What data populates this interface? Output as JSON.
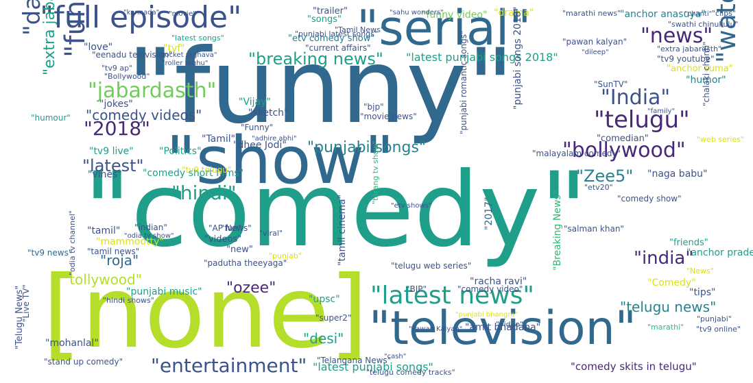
{
  "palette": {
    "background": "#ffffff",
    "dark_purple": "#482878",
    "deep_blue": "#3b528b",
    "blue": "#31688e",
    "teal_blue": "#26828e",
    "teal": "#1f9e89",
    "green": "#35b779",
    "light_green": "#6ece58",
    "lime": "#b5de2b",
    "yellow": "#d8e219"
  },
  "words": [
    "\"funny\"",
    "\"comedy\"",
    "[none]",
    "\"show\"",
    "\"television\"",
    "\"serial\"",
    "\"full episode\"",
    "\"watch online\"",
    "\"funny videos\"",
    "\"daily soap\"",
    "\"latest news\"",
    "\"news\"",
    "\"telugu\"",
    "\"bollywood\"",
    "\"jabardasth\"",
    "\"India\"",
    "\"entertainment\"",
    "\"breaking news\"",
    "\"hindi\"",
    "\"Zee5\"",
    "\"2018\"",
    "\"india\"",
    "\"latest\"",
    "\"punjabi songs\"",
    "\"extra jabardasth\"",
    "\"comedy videos\"",
    "\"tollywood\"",
    "\"telugu news\"",
    "\"roja\"",
    "\"ozee\"",
    "\"desi\"",
    "\"latest punjabi songs 2018\"",
    "\"latest punjabi songs\"",
    "\"comedy skits in telugu\"",
    "\"naga babu\"",
    "\"racha ravi\"",
    "\"anchor anasuya\"",
    "\"drama\"",
    "\"funny video\"",
    "\"trailer\"",
    "\"songs\"",
    "\"Breaking News\"",
    "\"2017\"",
    "\"upsc\"",
    "\"punjabi music\"",
    "\"stand up comedy\"",
    "\"mohanlal\"",
    "\"comedy short films\"",
    "\"vines\"",
    "\"tv9 live\"",
    "\"Politics\"",
    "\"tamil\"",
    "\"mammootty\"",
    "\"videos\"",
    "\"new\"",
    "\"tamil news\"",
    "\"tv9 news\"",
    "\"Telugu News\"",
    "\"etv comedy show\"",
    "\"current affairs\"",
    "\"latest songs\"",
    "\"tvf\"",
    "\"love\"",
    "\"eenadu television\"",
    "\"tv9 ap\"",
    "\"Bollywood\"",
    "\"pawan kalyan\"",
    "\"extra jabardsth\"",
    "\"tv9 youtube\"",
    "\"anchor suma\"",
    "\"humor\"",
    "\"SunTV\"",
    "\"chalaki chanti\"",
    "\"comedian\"",
    "\"web series\"",
    "\"etv20\"",
    "\"comedy show\"",
    "\"salman khan\"",
    "\"anchor pradeep\"",
    "\"friends\"",
    "\"News\"",
    "\"tips\"",
    "\"Comedy\"",
    "\"punjabi\"",
    "\"tv9 online\"",
    "\"marathi\"",
    "\"comedy video\"",
    "\"BJP\"",
    "\"telugu web series\"",
    "\"super2\"",
    "\"amit bhadana\"",
    "\"video\"",
    "\"Pawan Kalyan\"",
    "\"punjabi bhangra\"",
    "\"telugu comedy tracks\"",
    "\"Telangana News\"",
    "\"cash\"",
    "\"tamil cinema\"",
    "\"padutha theeyaga\"",
    "\"punjab\"",
    "\"viral\"",
    "\"indian\"",
    "\"AP News\"",
    "\"fun\"",
    "\"Live TV\"",
    "\"hindi shows\"",
    "\"Tamil\"",
    "\"dhee Jodi\"",
    "\"tv9 telugu\"",
    "\"sketch\"",
    "\"Vijay\"",
    "\"Funny\"",
    "\"movie news\"",
    "\"bjp\"",
    "\"humour\"",
    "\"jokes\"",
    "\"punjabi romantic songs\"",
    "\"punjabi songs 2018\"",
    "\"punjabi latest songs\"",
    "\"Tamil News\"",
    "\"clips\"",
    "\"chanti\"",
    "\"marathi news\"",
    "\"swathi chinukulu\"",
    "\"dileep\"",
    "\"family\"",
    "\"kannada\"",
    "\"movie\"",
    "\"sahu wonders\"",
    "\"odia tv channel\"",
    "\"malayalam comedy\"",
    "\"rocket raghava\"",
    "\"roller raghu\"",
    "\"tarang tv show\"",
    "\"etv shows\"",
    "\"adhire abhi\"",
    "\"odia tv show\"",
    "\"flower tv comedy\""
  ]
}
